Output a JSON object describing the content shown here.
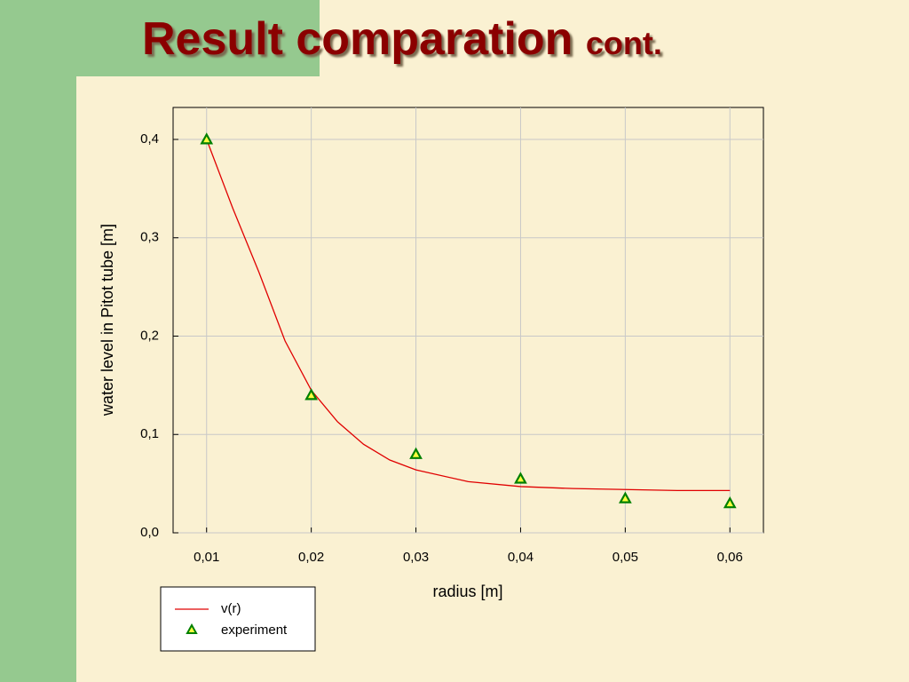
{
  "slide": {
    "title": "Result comparation",
    "title_small": "cont."
  },
  "chart_data": {
    "type": "line-scatter",
    "x_label": "radius [m]",
    "y_label": "water level in Pitot tube [m]",
    "xlim": [
      0.0068,
      0.0632
    ],
    "ylim": [
      0,
      0.4325
    ],
    "xticks": [
      {
        "value": 0.01,
        "label": "0,01"
      },
      {
        "value": 0.02,
        "label": "0,02"
      },
      {
        "value": 0.03,
        "label": "0,03"
      },
      {
        "value": 0.04,
        "label": "0,04"
      },
      {
        "value": 0.05,
        "label": "0,05"
      },
      {
        "value": 0.06,
        "label": "0,06"
      }
    ],
    "yticks": [
      {
        "value": 0,
        "label": "0,0"
      },
      {
        "value": 0.1,
        "label": "0,1"
      },
      {
        "value": 0.2,
        "label": "0,2"
      },
      {
        "value": 0.3,
        "label": "0,3"
      },
      {
        "value": 0.4,
        "label": "0,4"
      }
    ],
    "grid": true,
    "series": [
      {
        "name": "v(r)",
        "kind": "line",
        "color": "#e00000",
        "x": [
          0.01,
          0.0125,
          0.015,
          0.0175,
          0.02,
          0.0225,
          0.025,
          0.0275,
          0.03,
          0.035,
          0.04,
          0.045,
          0.05,
          0.055,
          0.06
        ],
        "values": [
          0.4,
          0.33,
          0.265,
          0.195,
          0.145,
          0.113,
          0.09,
          0.074,
          0.064,
          0.052,
          0.047,
          0.045,
          0.044,
          0.043,
          0.043
        ]
      },
      {
        "name": "experiment",
        "kind": "scatter",
        "color": "#008000",
        "x": [
          0.01,
          0.02,
          0.03,
          0.04,
          0.05,
          0.06
        ],
        "values": [
          0.4,
          0.14,
          0.08,
          0.055,
          0.035,
          0.03
        ]
      }
    ]
  }
}
